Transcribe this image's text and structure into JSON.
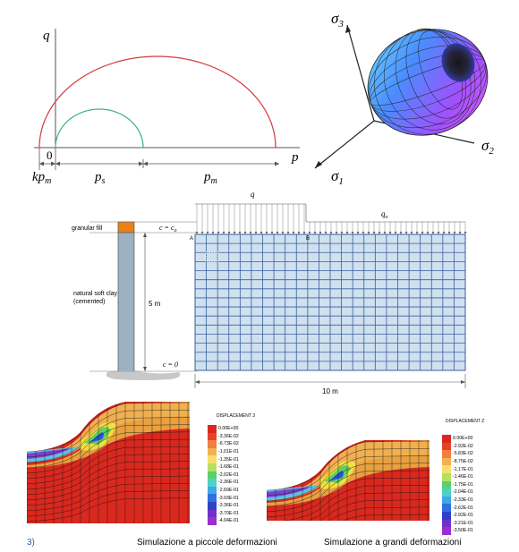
{
  "yield_surface_plot": {
    "q_label": "q",
    "p_label": "p",
    "origin_label": "0",
    "kpm_label": "kp",
    "kpm_sub": "m",
    "ps_label": "p",
    "ps_sub": "s",
    "pm_label": "p",
    "pm_sub": "m",
    "outer_color": "#d83a3a",
    "inner_color": "#3bb37a"
  },
  "stress_space_3d": {
    "s3_label": "σ",
    "s3_sub": "3",
    "s2_label": "σ",
    "s2_sub": "2",
    "s1_label": "σ",
    "s1_sub": "1"
  },
  "soil_column": {
    "q_label": "q",
    "q0_label": "q",
    "q0_sub": "o",
    "granular_fill": "granular fill",
    "c_top": "c = c",
    "c_top_sub": "o",
    "natural_clay_line1": "natural soft clay",
    "natural_clay_line2": "(cemented)",
    "height_label": "5 m",
    "c_bottom": "c = 0",
    "point_a": "A",
    "point_b": "B",
    "width_label": "10 m"
  },
  "legend_left": {
    "title": "DISPLACEMENT  3",
    "values": [
      "0.00E+00",
      "-3.36E-02",
      "-6.73E-02",
      "-1.01E-01",
      "-1.35E-01",
      "-1.68E-01",
      "-2.02E-01",
      "-2.36E-01",
      "-2.69E-01",
      "-3.03E-01",
      "-3.36E-01",
      "-3.70E-01",
      "-4.04E-01"
    ]
  },
  "legend_right": {
    "title": "DISPLACEMENT  Z",
    "values": [
      "0.00E+00",
      "-2.92E-02",
      "-5.83E-02",
      "-8.75E-02",
      "-1.17E-01",
      "-1.46E-01",
      "-1.75E-01",
      "-2.04E-01",
      "-2.33E-01",
      "-2.62E-01",
      "-2.92E-01",
      "-3.21E-01",
      "-3.50E-01"
    ]
  },
  "captions": {
    "figure_number": "3)",
    "small_deformation": "Simulazione a piccole deformazioni",
    "large_deformation": "Simulazione a grandi deformazioni"
  },
  "colors": {
    "mesh_fill": "#cfe0ef",
    "mesh_line": "#3a5f9e",
    "fill_orange": "#e8821a",
    "column_fill": "#9cb1c2"
  }
}
